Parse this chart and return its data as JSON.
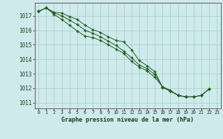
{
  "title": "Graphe pression niveau de la mer (hPa)",
  "background_color": "#ceeaea",
  "grid_color": "#aacece",
  "line_color": "#1a5c1a",
  "xlim": [
    -0.5,
    23.5
  ],
  "ylim": [
    1010.6,
    1017.9
  ],
  "yticks": [
    1011,
    1012,
    1013,
    1014,
    1015,
    1016,
    1017
  ],
  "xticks": [
    0,
    1,
    2,
    3,
    4,
    5,
    6,
    7,
    8,
    9,
    10,
    11,
    12,
    13,
    14,
    15,
    16,
    17,
    18,
    19,
    20,
    21,
    22,
    23
  ],
  "series1": [
    1017.3,
    1017.55,
    1017.25,
    1017.2,
    1016.95,
    1016.75,
    1016.35,
    1016.05,
    1015.85,
    1015.55,
    1015.3,
    1015.2,
    1014.65,
    1013.9,
    1013.55,
    1013.15,
    1012.05,
    1011.8,
    1011.5,
    1011.4,
    1011.4,
    1011.5,
    1011.95
  ],
  "series2": [
    1017.3,
    1017.55,
    1017.2,
    1017.0,
    1016.7,
    1016.4,
    1016.0,
    1015.8,
    1015.55,
    1015.25,
    1014.95,
    1014.55,
    1014.1,
    1013.6,
    1013.35,
    1012.95,
    1012.05,
    1011.8,
    1011.5,
    1011.4,
    1011.4,
    1011.5,
    1011.95
  ],
  "series3": [
    1017.3,
    1017.55,
    1017.1,
    1016.75,
    1016.35,
    1015.95,
    1015.6,
    1015.5,
    1015.3,
    1015.0,
    1014.7,
    1014.4,
    1013.85,
    1013.45,
    1013.2,
    1012.75,
    1012.1,
    1011.85,
    1011.5,
    1011.4,
    1011.4,
    1011.5,
    1011.95
  ]
}
